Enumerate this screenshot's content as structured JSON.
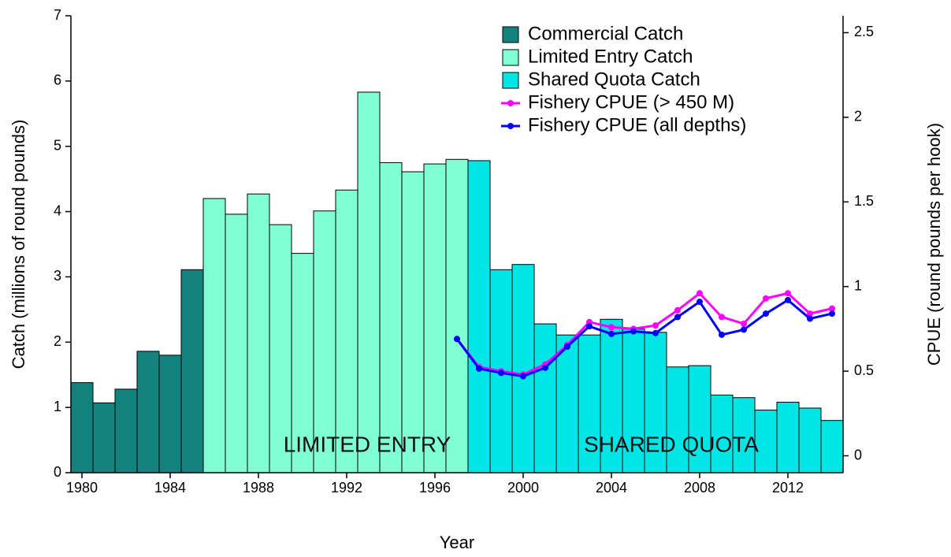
{
  "chart_data": {
    "type": "bar+line",
    "x": [
      1980,
      1981,
      1982,
      1983,
      1984,
      1985,
      1986,
      1987,
      1988,
      1989,
      1990,
      1991,
      1992,
      1993,
      1994,
      1995,
      1996,
      1997,
      1998,
      1999,
      2000,
      2001,
      2002,
      2003,
      2004,
      2005,
      2006,
      2007,
      2008,
      2009,
      2010,
      2011,
      2012,
      2013,
      2014
    ],
    "xlabel": "Year",
    "ylabel": "Catch (millions of round pounds)",
    "y2label": "CPUE (round pounds per hook)",
    "xlim": [
      1979.5,
      2014.5
    ],
    "xticks": [
      1980,
      1984,
      1988,
      1992,
      1996,
      2000,
      2004,
      2008,
      2012
    ],
    "ylim": [
      0,
      7
    ],
    "yticks": [
      0,
      1,
      2,
      3,
      4,
      5,
      6,
      7
    ],
    "y2lim": [
      -0.1,
      2.6
    ],
    "y2ticks": [
      0,
      0.5,
      1,
      1.5,
      2,
      2.5
    ],
    "legend": "upper right",
    "annotations": [
      "LIMITED ENTRY",
      "SHARED QUOTA"
    ],
    "series": [
      {
        "name": "Commercial Catch",
        "type": "bar",
        "color": "#12827e",
        "values": [
          1.38,
          1.07,
          1.28,
          1.86,
          1.8,
          3.11,
          null,
          null,
          null,
          null,
          null,
          null,
          null,
          null,
          null,
          null,
          null,
          null,
          null,
          null,
          null,
          null,
          null,
          null,
          null,
          null,
          null,
          null,
          null,
          null,
          null,
          null,
          null,
          null,
          null
        ]
      },
      {
        "name": "Limited Entry Catch",
        "type": "bar",
        "color": "#80ffd4",
        "values": [
          null,
          null,
          null,
          null,
          null,
          null,
          4.2,
          3.96,
          4.27,
          3.8,
          3.36,
          4.01,
          4.33,
          5.83,
          4.75,
          4.61,
          4.73,
          4.8,
          null,
          null,
          null,
          null,
          null,
          null,
          null,
          null,
          null,
          null,
          null,
          null,
          null,
          null,
          null,
          null,
          null
        ]
      },
      {
        "name": "Shared Quota Catch",
        "type": "bar",
        "color": "#00e6e6",
        "values": [
          null,
          null,
          null,
          null,
          null,
          null,
          null,
          null,
          null,
          null,
          null,
          null,
          null,
          null,
          null,
          null,
          null,
          null,
          4.78,
          3.11,
          3.19,
          2.28,
          2.11,
          2.11,
          2.35,
          2.2,
          2.15,
          1.62,
          1.64,
          1.19,
          1.15,
          0.96,
          1.08,
          0.99,
          0.8
        ]
      },
      {
        "name": "Fishery CPUE (> 450 M)",
        "type": "line",
        "axis": "y2",
        "color": "#ff00ff",
        "values": [
          null,
          null,
          null,
          null,
          null,
          null,
          null,
          null,
          null,
          null,
          null,
          null,
          null,
          null,
          null,
          null,
          null,
          0.69,
          0.525,
          0.5,
          0.48,
          0.54,
          0.655,
          0.79,
          0.76,
          0.75,
          0.77,
          0.86,
          0.96,
          0.82,
          0.78,
          0.93,
          0.96,
          0.84,
          0.87
        ]
      },
      {
        "name": "Fishery CPUE (all depths)",
        "type": "line",
        "axis": "y2",
        "color": "#0000ff",
        "values": [
          null,
          null,
          null,
          null,
          null,
          null,
          null,
          null,
          null,
          null,
          null,
          null,
          null,
          null,
          null,
          null,
          null,
          0.69,
          0.515,
          0.49,
          0.47,
          0.52,
          0.645,
          0.765,
          0.72,
          0.735,
          0.725,
          0.82,
          0.91,
          0.715,
          0.745,
          0.84,
          0.92,
          0.81,
          0.84
        ]
      }
    ]
  }
}
